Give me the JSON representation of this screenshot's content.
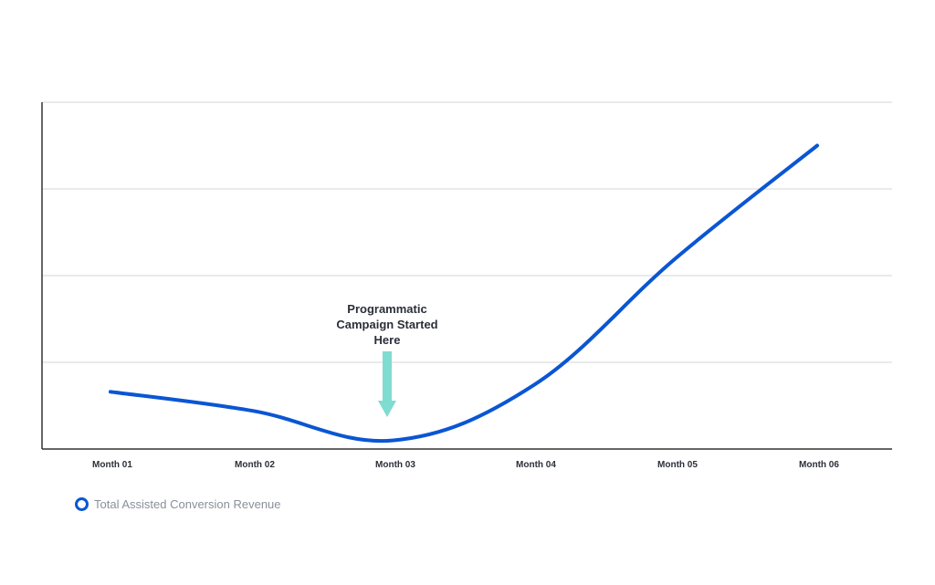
{
  "chart_data": {
    "type": "line",
    "categories": [
      "Month 01",
      "Month 02",
      "Month 03",
      "Month 04",
      "Month 05",
      "Month 06"
    ],
    "series": [
      {
        "name": "Total Assisted Conversion Revenue",
        "values": [
          0.66,
          0.44,
          0.1,
          0.74,
          2.2,
          3.5
        ]
      }
    ],
    "ylim": [
      0,
      4
    ],
    "grid": true,
    "legend_position": "bottom-left",
    "annotation": {
      "lines": [
        "Programmatic",
        "Campaign Started",
        "Here"
      ],
      "category": "Month 03"
    },
    "colors": {
      "line": "#0a56d3",
      "arrow": "#7fdcd0",
      "grid": "#d4d4d4",
      "axis": "#333333"
    }
  }
}
